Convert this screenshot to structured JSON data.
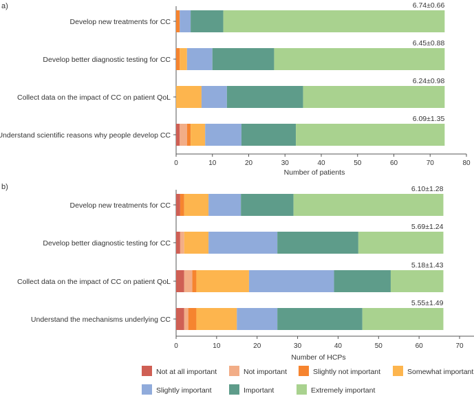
{
  "chart_data": {
    "legend": {
      "placement": "bottom",
      "entries": [
        {
          "key": "not_at_all",
          "label": "Not at all important",
          "color": "#cf5f54"
        },
        {
          "key": "not",
          "label": "Not important",
          "color": "#f2ad87"
        },
        {
          "key": "slightly_not",
          "label": "Slightly not important",
          "color": "#f6842f"
        },
        {
          "key": "somewhat",
          "label": "Somewhat important",
          "color": "#fdb54e"
        },
        {
          "key": "slightly",
          "label": "Slightly important",
          "color": "#90abdb"
        },
        {
          "key": "important",
          "label": "Important",
          "color": "#5e9c8a"
        },
        {
          "key": "extremely",
          "label": "Extremely important",
          "color": "#a9d28f"
        }
      ]
    },
    "charts": [
      {
        "panel": "a)",
        "type": "bar",
        "orientation": "horizontal",
        "stacked": true,
        "xlabel": "Number of patients",
        "xlim": [
          0,
          80
        ],
        "xticks": [
          0,
          10,
          20,
          30,
          40,
          50,
          60,
          70,
          80
        ],
        "categories": [
          "Develop new treatments for CC",
          "Develop better diagnostic testing for CC",
          "Collect data on the impact of CC on patient QoL",
          "Understand scientific reasons why people develop CC"
        ],
        "annotations": [
          "6.74±0.66",
          "6.45±0.88",
          "6.24±0.98",
          "6.09±1.35"
        ],
        "series": [
          {
            "name": "Not at all important",
            "values": [
              0,
              0,
              0,
              1
            ]
          },
          {
            "name": "Not important",
            "values": [
              0,
              0,
              0,
              2
            ]
          },
          {
            "name": "Slightly not important",
            "values": [
              1,
              1,
              0,
              1
            ]
          },
          {
            "name": "Somewhat important",
            "values": [
              0,
              2,
              7,
              4
            ]
          },
          {
            "name": "Slightly important",
            "values": [
              3,
              7,
              7,
              10
            ]
          },
          {
            "name": "Important",
            "values": [
              9,
              17,
              21,
              15
            ]
          },
          {
            "name": "Extremely important",
            "values": [
              61,
              47,
              39,
              41
            ]
          }
        ]
      },
      {
        "panel": "b)",
        "type": "bar",
        "orientation": "horizontal",
        "stacked": true,
        "xlabel": "Number of HCPs",
        "xlim": [
          0,
          74
        ],
        "xticks": [
          0,
          10,
          20,
          30,
          40,
          50,
          60,
          70
        ],
        "categories": [
          "Develop new treatments for CC",
          "Develop better diagnostic testing for CC",
          "Collect data on the impact of CC on patient QoL",
          "Understand the mechanisms underlying CC"
        ],
        "annotations": [
          "6.10±1.28",
          "5.69±1.24",
          "5.18±1.43",
          "5.55±1.49"
        ],
        "series": [
          {
            "name": "Not at all important",
            "values": [
              1,
              1,
              2,
              2
            ]
          },
          {
            "name": "Not important",
            "values": [
              0,
              1,
              2,
              1
            ]
          },
          {
            "name": "Slightly not important",
            "values": [
              1,
              0,
              1,
              2
            ]
          },
          {
            "name": "Somewhat important",
            "values": [
              6,
              6,
              13,
              10
            ]
          },
          {
            "name": "Slightly important",
            "values": [
              8,
              17,
              21,
              10
            ]
          },
          {
            "name": "Important",
            "values": [
              13,
              20,
              14,
              21
            ]
          },
          {
            "name": "Extremely important",
            "values": [
              37,
              21,
              13,
              20
            ]
          }
        ]
      }
    ]
  }
}
